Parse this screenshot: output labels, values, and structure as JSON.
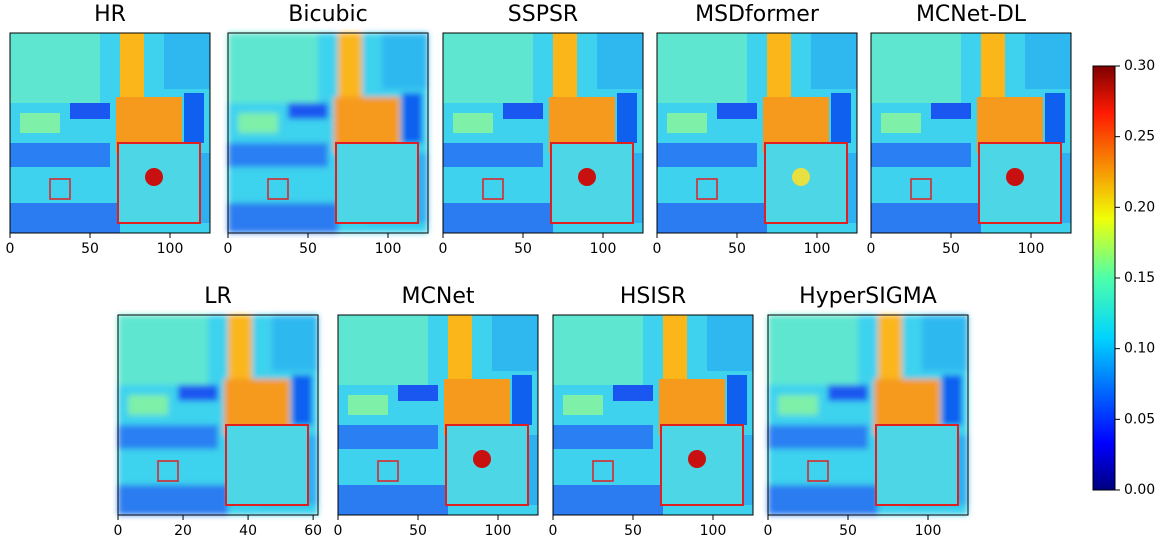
{
  "chart_data": [
    {
      "type": "image",
      "title": "HR",
      "xlim": [
        0,
        125
      ],
      "xticks": [
        0,
        50,
        100
      ]
    },
    {
      "type": "image",
      "title": "Bicubic",
      "xlim": [
        0,
        125
      ],
      "xticks": [
        0,
        50,
        100
      ]
    },
    {
      "type": "image",
      "title": "SSPSR",
      "xlim": [
        0,
        125
      ],
      "xticks": [
        0,
        50,
        100
      ]
    },
    {
      "type": "image",
      "title": "MSDformer",
      "xlim": [
        0,
        125
      ],
      "xticks": [
        0,
        50,
        100
      ]
    },
    {
      "type": "image",
      "title": "MCNet-DL",
      "xlim": [
        0,
        125
      ],
      "xticks": [
        0,
        50,
        100
      ]
    },
    {
      "type": "image",
      "title": "LR",
      "xlim": [
        0,
        61.5
      ],
      "xticks": [
        0,
        20,
        40,
        60
      ]
    },
    {
      "type": "image",
      "title": "MCNet",
      "xlim": [
        0,
        125
      ],
      "xticks": [
        0,
        50,
        100
      ]
    },
    {
      "type": "image",
      "title": "HSISR",
      "xlim": [
        0,
        125
      ],
      "xticks": [
        0,
        50,
        100
      ]
    },
    {
      "type": "image",
      "title": "HyperSIGMA",
      "xlim": [
        0,
        125
      ],
      "xticks": [
        0,
        50,
        100
      ]
    },
    {
      "type": "colorbar",
      "ylim": [
        0,
        0.3
      ],
      "yticks": [
        {
          "value": 0,
          "label": "0.00"
        },
        0.05,
        {
          "value": 0.1,
          "label": "0.10"
        },
        0.15,
        {
          "value": 0.2,
          "label": "0.20"
        },
        0.25,
        {
          "value": 0.3,
          "label": "0.30"
        }
      ]
    }
  ]
}
